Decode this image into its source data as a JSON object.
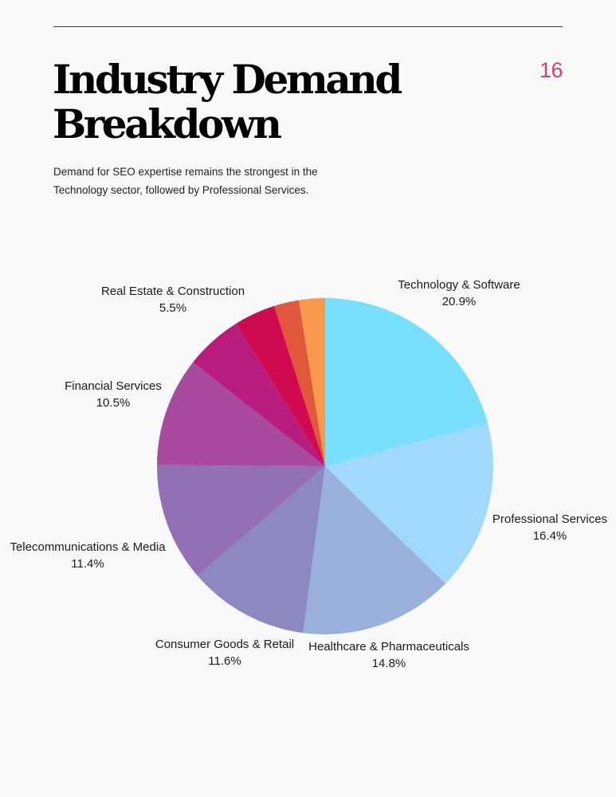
{
  "page": {
    "number": "16",
    "title_line1": "Industry Demand",
    "title_line2": "Breakdown",
    "subtitle": "Demand for SEO expertise remains the strongest in the Technology sector, followed by Professional Services.",
    "accent_color": "#e0396b"
  },
  "chart_data": {
    "type": "pie",
    "start_angle_deg": 0,
    "direction": "clockwise",
    "slices": [
      {
        "name": "Technology & Software",
        "value": 20.9,
        "label": "20.9%",
        "color": "#78dffd",
        "labeled": true
      },
      {
        "name": "Professional Services",
        "value": 16.4,
        "label": "16.4%",
        "color": "#a1d9fd",
        "labeled": true
      },
      {
        "name": "Healthcare & Pharmaceuticals",
        "value": 14.8,
        "label": "14.8%",
        "color": "#99b1da",
        "labeled": true
      },
      {
        "name": "Consumer Goods & Retail",
        "value": 11.6,
        "label": "11.6%",
        "color": "#8c89c2",
        "labeled": true
      },
      {
        "name": "Telecommunications & Media",
        "value": 11.4,
        "label": "11.4%",
        "color": "#936fb6",
        "labeled": true
      },
      {
        "name": "Financial Services",
        "value": 10.5,
        "label": "10.5%",
        "color": "#a84a9e",
        "labeled": true
      },
      {
        "name": "Real Estate & Construction",
        "value": 5.5,
        "label": "5.5%",
        "color": "#b81c7f",
        "labeled": true
      },
      {
        "name": "",
        "value": 4.0,
        "label": "",
        "color": "#cf0a50",
        "labeled": false
      },
      {
        "name": "",
        "value": 2.4,
        "label": "",
        "color": "#e0573b",
        "labeled": false
      },
      {
        "name": "",
        "value": 2.5,
        "label": "",
        "color": "#f7994a",
        "labeled": false
      }
    ]
  }
}
